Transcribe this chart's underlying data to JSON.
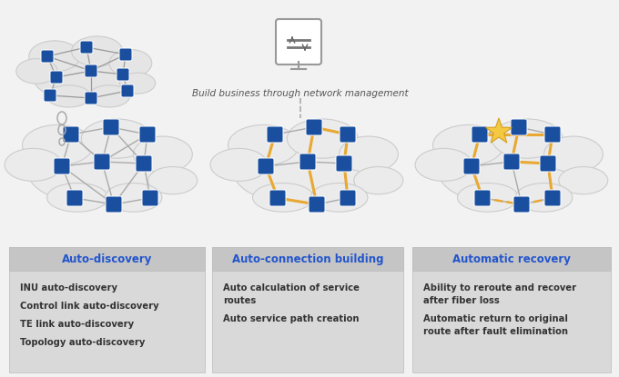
{
  "bg_color": "#f2f2f2",
  "title_text": "Build business through network management",
  "box_titles": [
    "Auto-discovery",
    "Auto-connection building",
    "Automatic recovery"
  ],
  "box_bullets": [
    [
      "INU auto-discovery",
      "Control link auto-discovery",
      "TE link auto-discovery",
      "Topology auto-discovery"
    ],
    [
      "Auto calculation of service\nroutes",
      "Auto service path creation"
    ],
    [
      "Ability to reroute and recover\nafter fiber loss",
      "Automatic return to original\nroute after fault elimination"
    ]
  ],
  "box_title_color": "#2255cc",
  "box_text_color": "#333333",
  "box_bg": "#d9d9d9",
  "box_header_bg": "#c5c5c5",
  "node_color": "#1a4fa0",
  "edge_gray": "#aaaaaa",
  "orange_color": "#e8a832",
  "cloud_color": "#ebebeb",
  "cloud_edge": "#cccccc",
  "small_cloud_color": "#e5e5e5",
  "icon_color": "#888888"
}
